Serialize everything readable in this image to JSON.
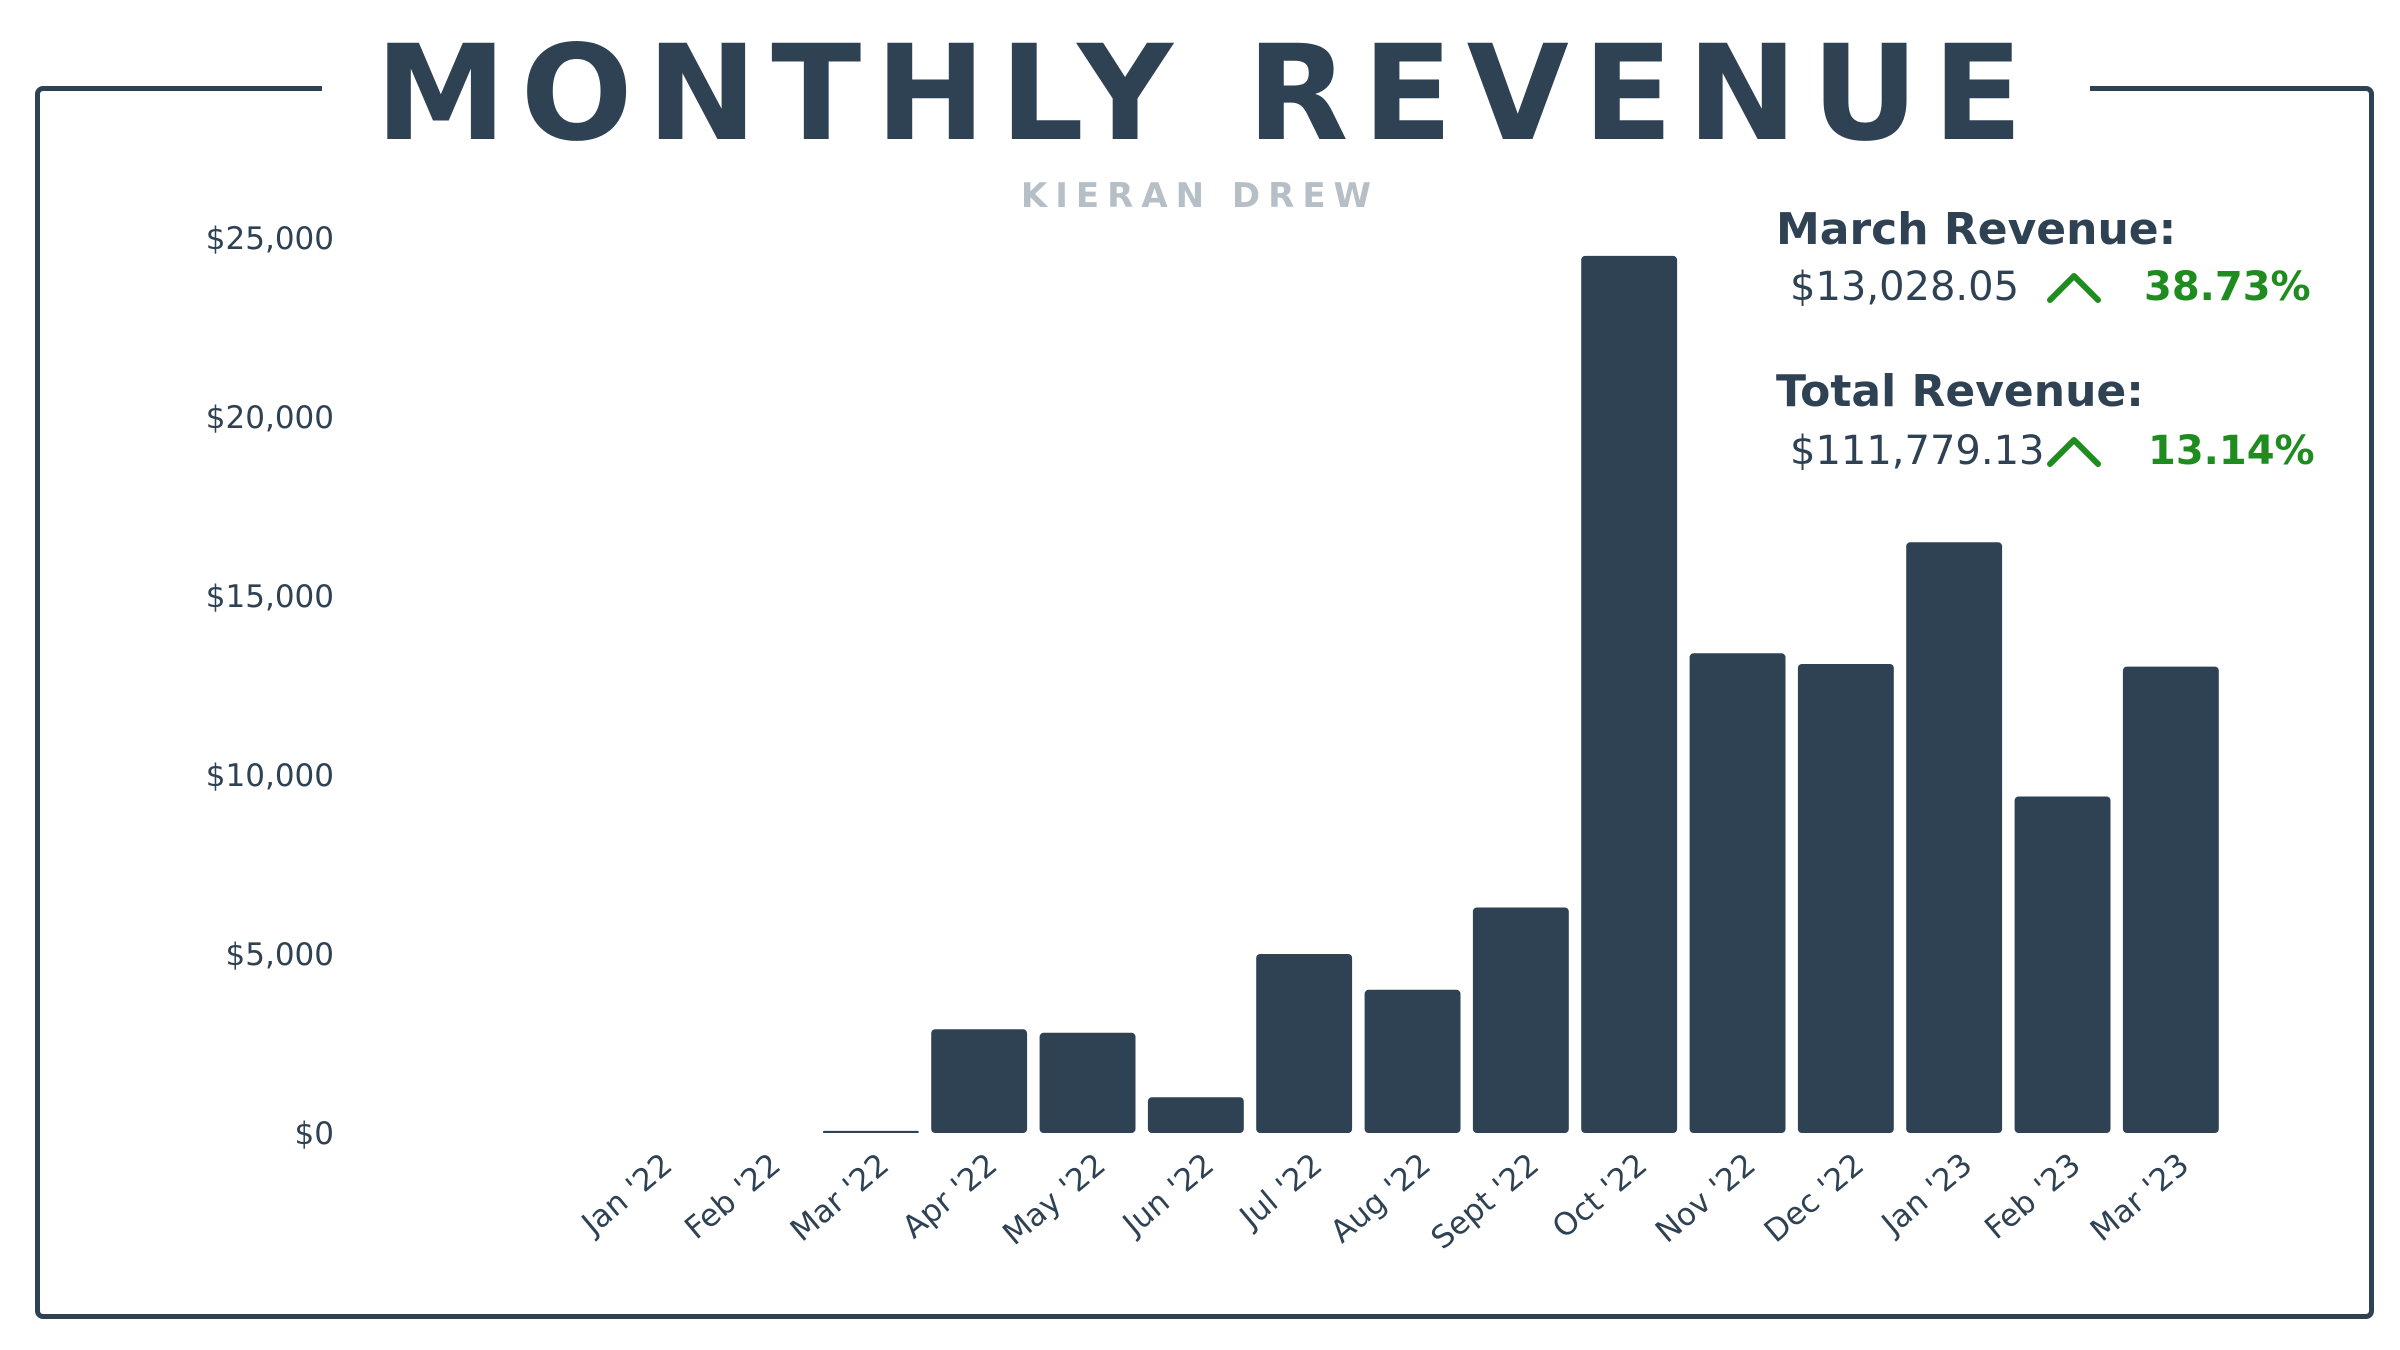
{
  "header": {
    "title": "MONTHLY REVENUE",
    "subtitle": "KIERAN DREW"
  },
  "colors": {
    "bar": "#2f4254",
    "text": "#2f4254",
    "subtitle": "#b7bfc6",
    "positive": "#1e8c1e",
    "frame": "#2f4254"
  },
  "kpis": [
    {
      "label": "March Revenue:",
      "value": "$13,028.05",
      "change": "38.73%",
      "direction_icon": "chevron-up-icon"
    },
    {
      "label": "Total Revenue:",
      "value": "$111,779.13",
      "change": "13.14%",
      "direction_icon": "chevron-up-icon"
    }
  ],
  "chart_data": {
    "type": "bar",
    "title": "MONTHLY REVENUE",
    "subtitle": "KIERAN DREW",
    "xlabel": "",
    "ylabel": "",
    "categories": [
      "Jan '22",
      "Feb '22",
      "Mar '22",
      "Apr '22",
      "May '22",
      "Jun '22",
      "Jul '22",
      "Aug '22",
      "Sept '22",
      "Oct '22",
      "Nov '22",
      "Dec '22",
      "Jan '23",
      "Feb '23",
      "Mar '23"
    ],
    "values": [
      0,
      0,
      60,
      2900,
      2800,
      1000,
      5000,
      4000,
      6300,
      24500,
      13400,
      13100,
      16500,
      9400,
      13028.05
    ],
    "ylim": [
      0,
      25000
    ],
    "yticks": [
      0,
      5000,
      10000,
      15000,
      20000,
      25000
    ],
    "ytick_labels": [
      "$0",
      "$5,000",
      "$10,000",
      "$15,000",
      "$20,000",
      "$25,000"
    ],
    "grid": false,
    "legend": "none"
  }
}
